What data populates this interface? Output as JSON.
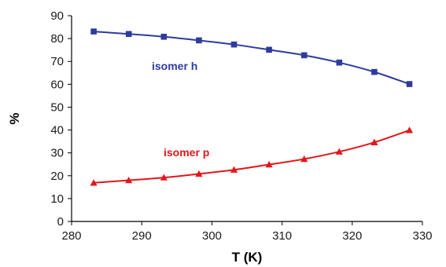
{
  "chart_data": {
    "type": "line",
    "title": "",
    "xlabel": "T (K)",
    "ylabel": "%",
    "xlim": [
      280,
      330
    ],
    "ylim": [
      0,
      90
    ],
    "x_ticks": [
      280,
      290,
      300,
      310,
      320,
      330
    ],
    "y_ticks": [
      0,
      10,
      20,
      30,
      40,
      50,
      60,
      70,
      80,
      90
    ],
    "grid": false,
    "legend": "none",
    "x": [
      283.15,
      288.15,
      293.15,
      298.15,
      303.15,
      308.15,
      313.15,
      318.15,
      323.15,
      328.15
    ],
    "series": [
      {
        "name": "isomer h",
        "color": "#2e3b9e",
        "marker": "square",
        "values": [
          83.1,
          82.0,
          80.8,
          79.2,
          77.4,
          75.1,
          72.7,
          69.5,
          65.4,
          60.1
        ]
      },
      {
        "name": "isomer p",
        "color": "#e3161b",
        "marker": "triangle",
        "values": [
          16.9,
          18.0,
          19.2,
          20.8,
          22.6,
          24.9,
          27.3,
          30.5,
          34.6,
          39.9
        ]
      }
    ]
  }
}
